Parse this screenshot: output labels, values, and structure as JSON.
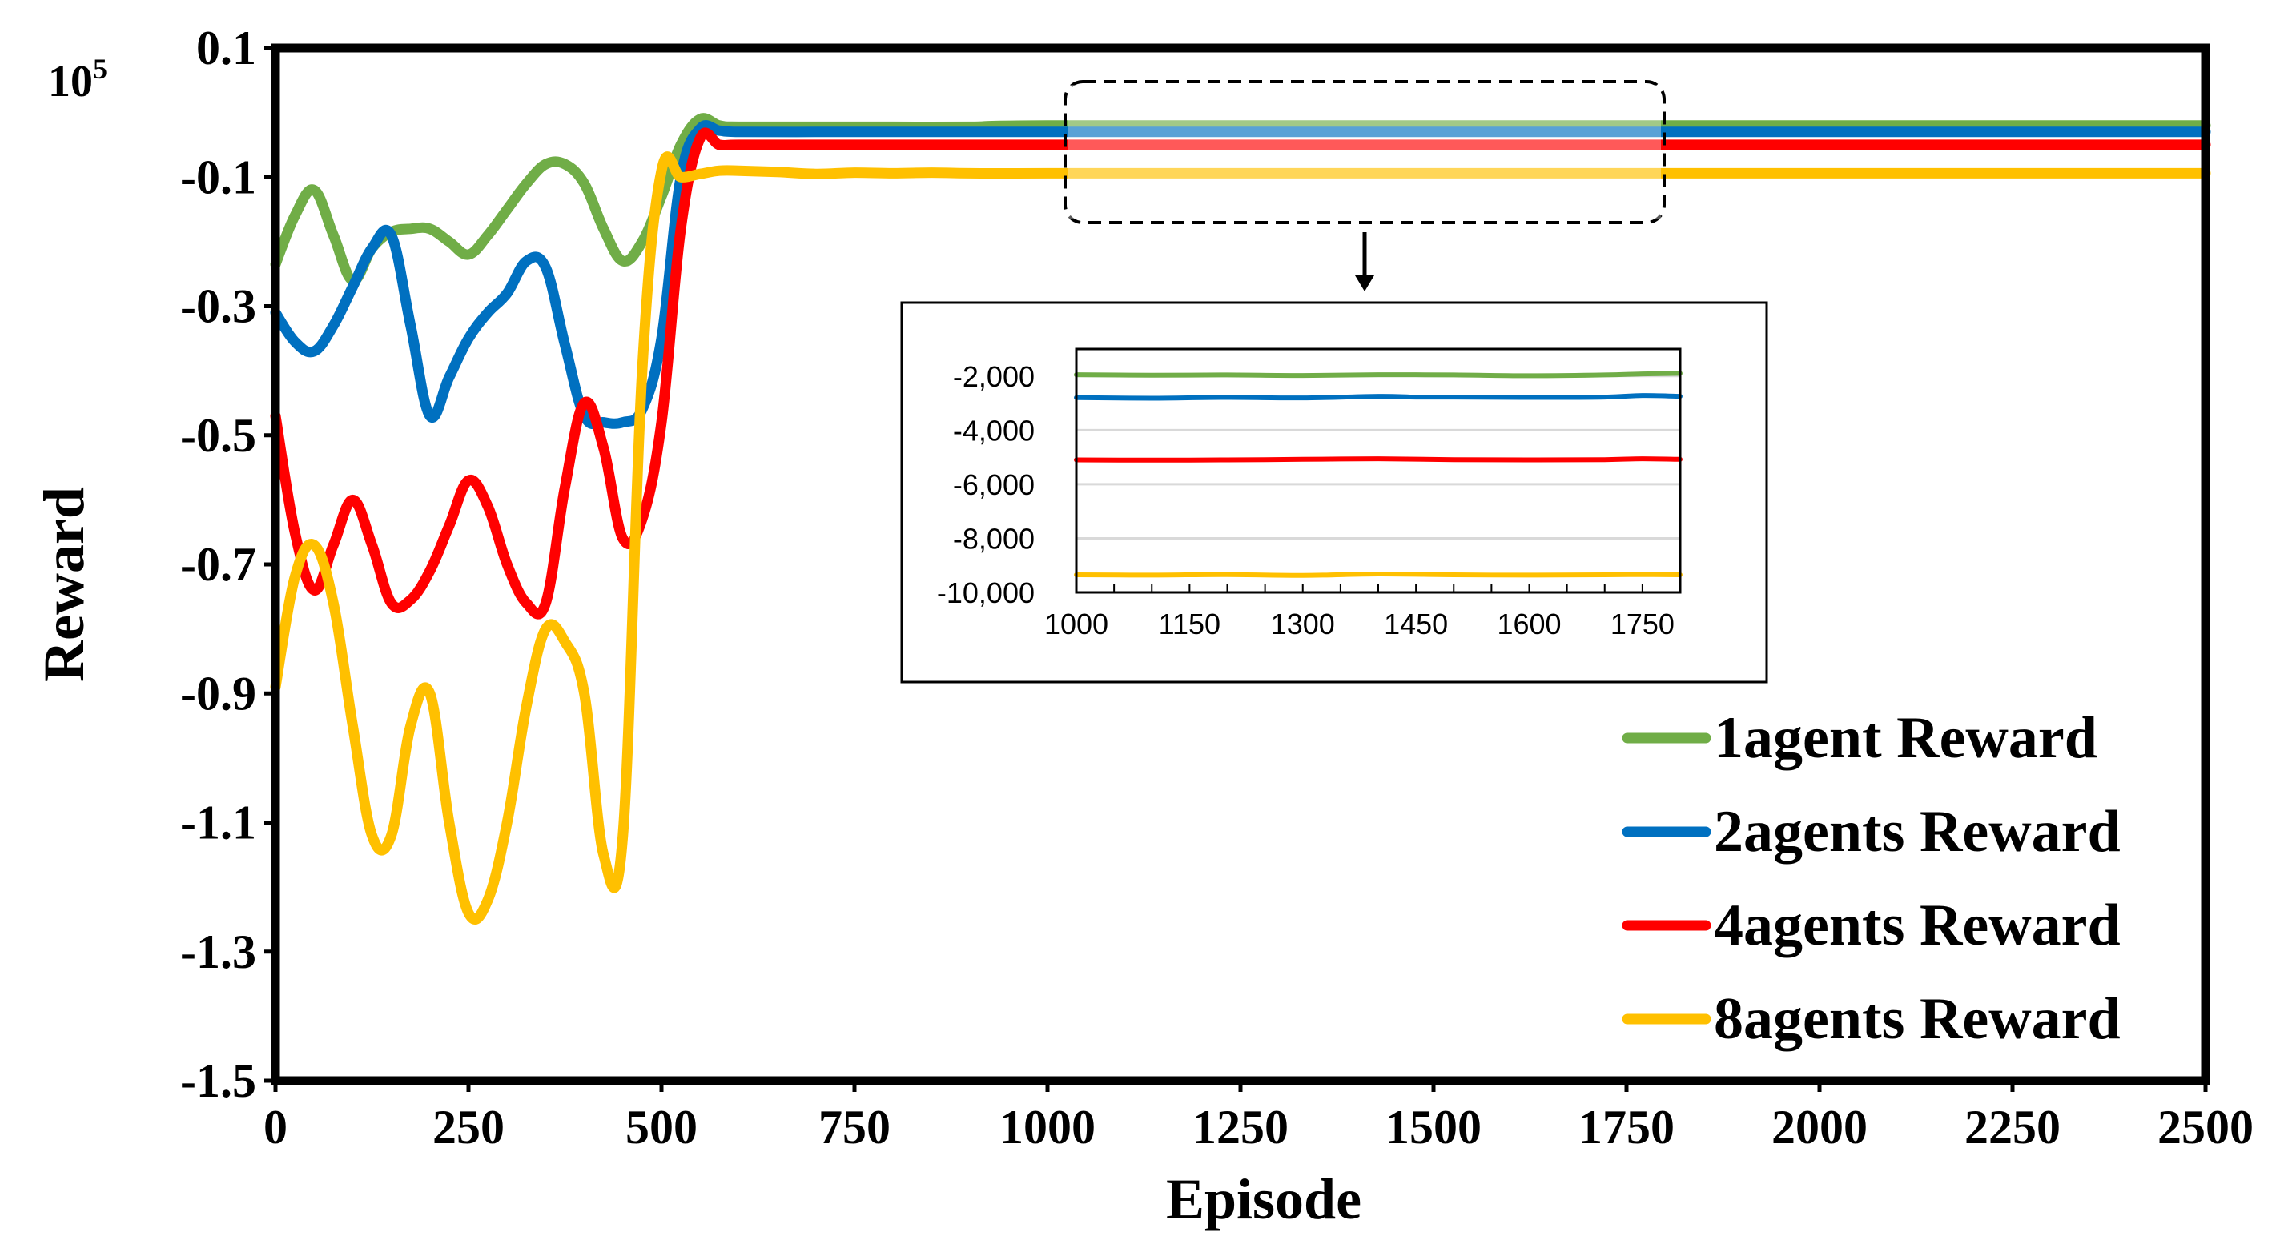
{
  "chart_data": [
    {
      "type": "line",
      "role": "main",
      "title": "",
      "xlabel": "Episode",
      "ylabel": "Reward",
      "scale_label": "10",
      "scale_exp": "5",
      "xlim": [
        0,
        2500
      ],
      "ylim": [
        -1.5,
        0.1
      ],
      "xticks": [
        0,
        250,
        500,
        750,
        1000,
        1250,
        1500,
        1750,
        2000,
        2250,
        2500
      ],
      "xtick_labels": [
        "0",
        "250",
        "500",
        "750",
        "1000",
        "1250",
        "1500",
        "1750",
        "2000",
        "2250",
        "2500"
      ],
      "yticks": [
        0.1,
        -0.1,
        -0.3,
        -0.5,
        -0.7,
        -0.9,
        -1.1,
        -1.3,
        -1.5
      ],
      "ytick_labels": [
        "0.1",
        "-0.1",
        "-0.3",
        "-0.5",
        "-0.7",
        "-0.9",
        "-1.1",
        "-1.3",
        "-1.5"
      ],
      "grid": false,
      "legend_position": "bottom-right",
      "series": [
        {
          "name": "1agent Reward",
          "color": "#70AD47",
          "x": [
            0,
            25,
            50,
            75,
            100,
            125,
            150,
            175,
            200,
            225,
            250,
            275,
            300,
            325,
            350,
            375,
            400,
            425,
            450,
            475,
            500,
            525,
            550,
            575,
            600,
            700,
            800,
            900,
            1000,
            1500,
            2000,
            2500
          ],
          "y": [
            -0.235,
            -0.16,
            -0.12,
            -0.19,
            -0.26,
            -0.21,
            -0.185,
            -0.18,
            -0.18,
            -0.2,
            -0.22,
            -0.19,
            -0.15,
            -0.11,
            -0.08,
            -0.08,
            -0.11,
            -0.18,
            -0.23,
            -0.2,
            -0.13,
            -0.05,
            -0.01,
            -0.02,
            -0.022,
            -0.022,
            -0.022,
            -0.022,
            -0.02,
            -0.02,
            -0.02,
            -0.02
          ]
        },
        {
          "name": "2agents Reward",
          "color": "#0070C0",
          "x": [
            0,
            25,
            50,
            75,
            100,
            125,
            150,
            175,
            200,
            225,
            250,
            275,
            300,
            325,
            350,
            375,
            400,
            425,
            450,
            475,
            500,
            525,
            550,
            575,
            600,
            700,
            800,
            900,
            1000,
            1500,
            2000,
            2500
          ],
          "y": [
            -0.31,
            -0.355,
            -0.37,
            -0.33,
            -0.27,
            -0.21,
            -0.19,
            -0.33,
            -0.47,
            -0.41,
            -0.35,
            -0.31,
            -0.28,
            -0.23,
            -0.24,
            -0.36,
            -0.47,
            -0.48,
            -0.48,
            -0.46,
            -0.35,
            -0.1,
            -0.025,
            -0.028,
            -0.03,
            -0.03,
            -0.03,
            -0.03,
            -0.03,
            -0.03,
            -0.03,
            -0.03
          ]
        },
        {
          "name": "4agents Reward",
          "color": "#FF0000",
          "x": [
            0,
            25,
            50,
            75,
            100,
            125,
            150,
            175,
            200,
            225,
            250,
            275,
            300,
            325,
            350,
            375,
            400,
            425,
            450,
            475,
            500,
            525,
            550,
            575,
            600,
            700,
            800,
            900,
            1000,
            1500,
            2000,
            2500
          ],
          "y": [
            -0.47,
            -0.65,
            -0.74,
            -0.67,
            -0.6,
            -0.67,
            -0.76,
            -0.755,
            -0.71,
            -0.64,
            -0.57,
            -0.61,
            -0.7,
            -0.76,
            -0.76,
            -0.58,
            -0.45,
            -0.52,
            -0.66,
            -0.63,
            -0.48,
            -0.18,
            -0.04,
            -0.05,
            -0.05,
            -0.05,
            -0.05,
            -0.05,
            -0.05,
            -0.05,
            -0.05,
            -0.05
          ]
        },
        {
          "name": "8agents Reward",
          "color": "#FFC000",
          "x": [
            0,
            25,
            50,
            75,
            100,
            125,
            150,
            175,
            200,
            225,
            250,
            275,
            300,
            325,
            350,
            375,
            400,
            425,
            450,
            475,
            500,
            525,
            550,
            575,
            600,
            650,
            700,
            750,
            800,
            850,
            900,
            1000,
            1500,
            2000,
            2500
          ],
          "y": [
            -0.89,
            -0.72,
            -0.67,
            -0.76,
            -0.95,
            -1.12,
            -1.12,
            -0.95,
            -0.9,
            -1.1,
            -1.24,
            -1.22,
            -1.1,
            -0.92,
            -0.8,
            -0.82,
            -0.9,
            -1.15,
            -1.12,
            -0.4,
            -0.09,
            -0.1,
            -0.095,
            -0.09,
            -0.09,
            -0.092,
            -0.095,
            -0.093,
            -0.094,
            -0.093,
            -0.094,
            -0.094,
            -0.094,
            -0.094,
            -0.094
          ]
        }
      ]
    },
    {
      "type": "line",
      "role": "inset",
      "title": "",
      "xlabel": "",
      "ylabel": "",
      "zoom_source_x": [
        1000,
        1800
      ],
      "xlim": [
        1000,
        1800
      ],
      "ylim": [
        -10000,
        -1000
      ],
      "xticks": [
        1000,
        1150,
        1300,
        1450,
        1600,
        1750
      ],
      "xtick_labels": [
        "1000",
        "1150",
        "1300",
        "1450",
        "1600",
        "1750"
      ],
      "yticks": [
        -2000,
        -4000,
        -6000,
        -8000,
        -10000
      ],
      "ytick_labels": [
        "-2,000",
        "-4,000",
        "-6,000",
        "-8,000",
        "-10,000"
      ],
      "grid": true,
      "series": [
        {
          "name": "1agent Reward",
          "color": "#70AD47",
          "x": [
            1000,
            1100,
            1200,
            1300,
            1400,
            1500,
            1600,
            1700,
            1750,
            1800
          ],
          "y": [
            -1950,
            -1970,
            -1960,
            -1980,
            -1950,
            -1960,
            -1990,
            -1960,
            -1920,
            -1900
          ]
        },
        {
          "name": "2agents Reward",
          "color": "#0070C0",
          "x": [
            1000,
            1100,
            1200,
            1300,
            1400,
            1450,
            1500,
            1600,
            1700,
            1750,
            1800
          ],
          "y": [
            -2800,
            -2820,
            -2790,
            -2810,
            -2750,
            -2780,
            -2780,
            -2790,
            -2780,
            -2720,
            -2750
          ]
        },
        {
          "name": "4agents Reward",
          "color": "#FF0000",
          "x": [
            1000,
            1100,
            1200,
            1300,
            1400,
            1500,
            1600,
            1700,
            1750,
            1800
          ],
          "y": [
            -5100,
            -5110,
            -5100,
            -5080,
            -5060,
            -5090,
            -5100,
            -5090,
            -5060,
            -5080
          ]
        },
        {
          "name": "8agents Reward",
          "color": "#FFC000",
          "x": [
            1000,
            1100,
            1200,
            1300,
            1400,
            1500,
            1600,
            1700,
            1750,
            1800
          ],
          "y": [
            -9350,
            -9360,
            -9340,
            -9370,
            -9320,
            -9350,
            -9360,
            -9350,
            -9340,
            -9350
          ]
        }
      ]
    }
  ]
}
